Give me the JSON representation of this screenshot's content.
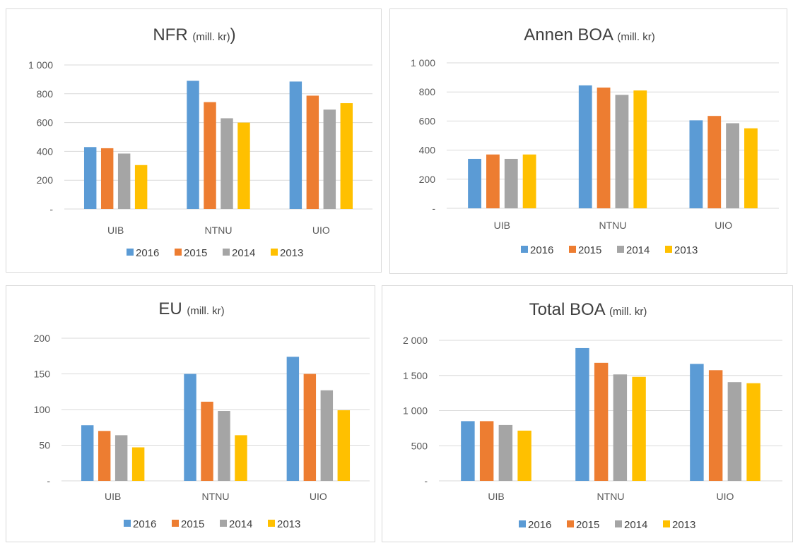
{
  "colors": {
    "2016": "#5b9bd5",
    "2015": "#ed7d31",
    "2014": "#a5a5a5",
    "2013": "#ffc000"
  },
  "chart_data": [
    {
      "type": "bar",
      "title": "NFR",
      "subtitle": "(mill. kr)",
      "title_suffix": ")",
      "categories": [
        "UIB",
        "NTNU",
        "UIO"
      ],
      "ylim": [
        0,
        1000
      ],
      "yticks": [
        {
          "v": 0,
          "label": "-"
        },
        {
          "v": 200,
          "label": "200"
        },
        {
          "v": 400,
          "label": "400"
        },
        {
          "v": 600,
          "label": "600"
        },
        {
          "v": 800,
          "label": "800"
        },
        {
          "v": 1000,
          "label": "1 000"
        }
      ],
      "series": [
        {
          "name": "2016",
          "values": [
            430,
            890,
            885
          ]
        },
        {
          "name": "2015",
          "values": [
            422,
            742,
            787
          ]
        },
        {
          "name": "2014",
          "values": [
            385,
            630,
            690
          ]
        },
        {
          "name": "2013",
          "values": [
            305,
            600,
            735
          ]
        }
      ],
      "legend_position": "bottom",
      "grid": true
    },
    {
      "type": "bar",
      "title": "Annen BOA",
      "subtitle": "(mill. kr)",
      "title_suffix": "",
      "categories": [
        "UIB",
        "NTNU",
        "UIO"
      ],
      "ylim": [
        0,
        1000
      ],
      "yticks": [
        {
          "v": 0,
          "label": "-"
        },
        {
          "v": 200,
          "label": "200"
        },
        {
          "v": 400,
          "label": "400"
        },
        {
          "v": 600,
          "label": "600"
        },
        {
          "v": 800,
          "label": "800"
        },
        {
          "v": 1000,
          "label": "1 000"
        }
      ],
      "series": [
        {
          "name": "2016",
          "values": [
            340,
            845,
            605
          ]
        },
        {
          "name": "2015",
          "values": [
            370,
            830,
            635
          ]
        },
        {
          "name": "2014",
          "values": [
            340,
            780,
            585
          ]
        },
        {
          "name": "2013",
          "values": [
            370,
            810,
            550
          ]
        }
      ],
      "legend_position": "bottom",
      "grid": true
    },
    {
      "type": "bar",
      "title": "EU",
      "subtitle": "(mill. kr)",
      "title_suffix": "",
      "categories": [
        "UIB",
        "NTNU",
        "UIO"
      ],
      "ylim": [
        0,
        200
      ],
      "yticks": [
        {
          "v": 0,
          "label": "-"
        },
        {
          "v": 50,
          "label": "50"
        },
        {
          "v": 100,
          "label": "100"
        },
        {
          "v": 150,
          "label": "150"
        },
        {
          "v": 200,
          "label": "200"
        }
      ],
      "series": [
        {
          "name": "2016",
          "values": [
            78,
            150,
            174
          ]
        },
        {
          "name": "2015",
          "values": [
            70,
            111,
            150
          ]
        },
        {
          "name": "2014",
          "values": [
            64,
            98,
            127
          ]
        },
        {
          "name": "2013",
          "values": [
            47,
            64,
            99
          ]
        }
      ],
      "legend_position": "bottom",
      "grid": true
    },
    {
      "type": "bar",
      "title": "Total BOA",
      "subtitle": "(mill. kr)",
      "title_suffix": "",
      "categories": [
        "UIB",
        "NTNU",
        "UIO"
      ],
      "ylim": [
        0,
        2000
      ],
      "yticks": [
        {
          "v": 0,
          "label": "-"
        },
        {
          "v": 500,
          "label": "500"
        },
        {
          "v": 1000,
          "label": "1 000"
        },
        {
          "v": 1500,
          "label": "1 500"
        },
        {
          "v": 2000,
          "label": "2 000"
        }
      ],
      "series": [
        {
          "name": "2016",
          "values": [
            850,
            1890,
            1665
          ]
        },
        {
          "name": "2015",
          "values": [
            850,
            1680,
            1575
          ]
        },
        {
          "name": "2014",
          "values": [
            795,
            1515,
            1405
          ]
        },
        {
          "name": "2013",
          "values": [
            715,
            1480,
            1390
          ]
        }
      ],
      "legend_position": "bottom",
      "grid": true
    }
  ]
}
